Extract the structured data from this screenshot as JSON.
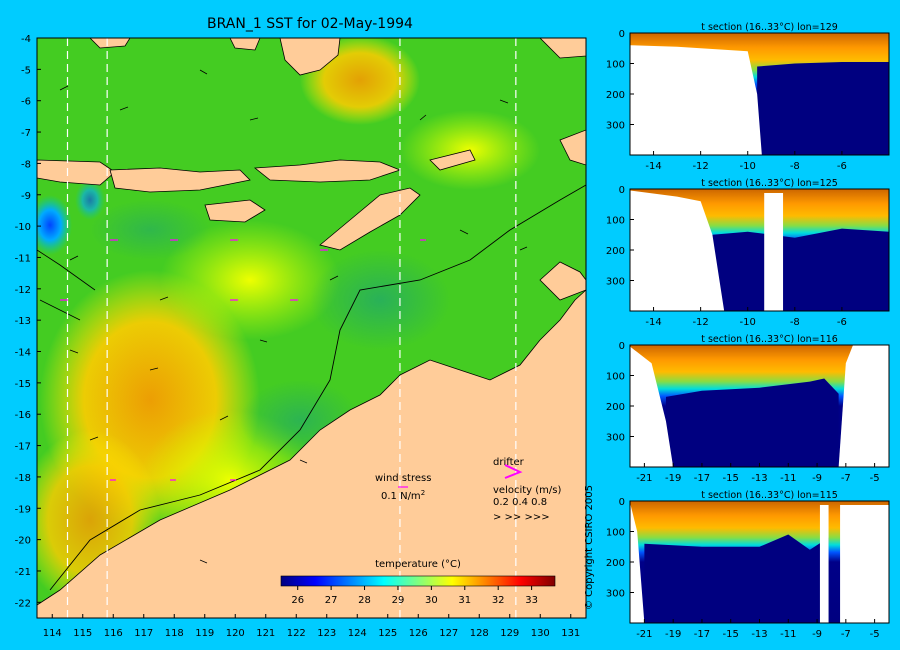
{
  "chart_data": [
    {
      "type": "heatmap",
      "title": "BRAN_1 SST for 02-May-1994",
      "xlim": [
        113.5,
        131.5
      ],
      "ylim": [
        -22.5,
        -4
      ],
      "x_ticks": [
        114,
        115,
        116,
        117,
        118,
        119,
        120,
        121,
        122,
        123,
        124,
        125,
        126,
        127,
        128,
        129,
        130,
        131
      ],
      "y_ticks": [
        -4,
        -5,
        -6,
        -7,
        -8,
        -9,
        -10,
        -11,
        -12,
        -13,
        -14,
        -15,
        -16,
        -17,
        -18,
        -19,
        -20,
        -21,
        -22
      ],
      "section_longitudes": [
        114.5,
        115.8,
        125.4,
        129.2
      ],
      "colorbar": {
        "label": "temperature (°C)",
        "range": [
          25.5,
          33.7
        ],
        "ticks": [
          26,
          27,
          28,
          29,
          30,
          31,
          32,
          33
        ],
        "colors": [
          "#000080",
          "#0000ff",
          "#0080ff",
          "#00ffff",
          "#80ff80",
          "#ffff00",
          "#ff8000",
          "#ff0000",
          "#800000"
        ]
      },
      "legend": {
        "wind_stress_label": "wind stress",
        "wind_stress_value": "0.1 N/m",
        "wind_stress_exp": "2",
        "drifter_label": "drifter",
        "velocity_label": "velocity (m/s)",
        "velocity_values": "0.2 0.4 0.8",
        "velocity_symbols": ">  >>  >>>"
      },
      "colors": {
        "land": "#ffcc99",
        "ocean_base": "#44cc22",
        "warm": "#ffaa00",
        "drifter": "#ff00ff"
      }
    },
    {
      "type": "heatmap",
      "title": "t section (16..33°C) lon=129",
      "xlim": [
        -15,
        -4
      ],
      "x_ticks": [
        -14,
        -12,
        -10,
        -8,
        -6
      ],
      "ylim": [
        0,
        400
      ],
      "y_ticks": [
        0,
        100,
        200,
        300
      ],
      "no_data_edge": [
        [
          -15,
          40
        ],
        [
          -13,
          45
        ],
        [
          -11,
          55
        ],
        [
          -10,
          60
        ],
        [
          -9.6,
          200
        ],
        [
          -9.4,
          400
        ]
      ],
      "thermocline": [
        [
          -9.6,
          70
        ],
        [
          -8,
          60
        ],
        [
          -6,
          55
        ],
        [
          -4,
          55
        ]
      ]
    },
    {
      "type": "heatmap",
      "title": "t section (16..33°C) lon=125",
      "xlim": [
        -15,
        -4
      ],
      "x_ticks": [
        -14,
        -12,
        -10,
        -8,
        -6
      ],
      "ylim": [
        0,
        400
      ],
      "y_ticks": [
        0,
        100,
        200,
        300
      ],
      "no_data_edge": [
        [
          -15,
          5
        ],
        [
          -13,
          25
        ],
        [
          -12,
          40
        ],
        [
          -11.5,
          150
        ],
        [
          -11,
          400
        ]
      ],
      "gaps": [
        [
          -9.3,
          -8.5
        ]
      ],
      "thermocline": [
        [
          -11.5,
          110
        ],
        [
          -10,
          100
        ],
        [
          -8,
          120
        ],
        [
          -6,
          90
        ],
        [
          -4,
          100
        ]
      ]
    },
    {
      "type": "heatmap",
      "title": "t section (16..33°C) lon=116",
      "xlim": [
        -22,
        -4
      ],
      "x_ticks": [
        -21,
        -19,
        -17,
        -15,
        -13,
        -11,
        -9,
        -7,
        -5
      ],
      "ylim": [
        0,
        400
      ],
      "y_ticks": [
        0,
        100,
        200,
        300
      ],
      "no_data_edge": [
        [
          -22,
          5
        ],
        [
          -20.5,
          60
        ],
        [
          -19.5,
          250
        ],
        [
          -19,
          400
        ]
      ],
      "east_edge": [
        [
          -6.5,
          0
        ],
        [
          -7,
          60
        ],
        [
          -7.5,
          400
        ]
      ],
      "thermocline": [
        [
          -19.5,
          130
        ],
        [
          -17,
          110
        ],
        [
          -13,
          100
        ],
        [
          -9.5,
          80
        ],
        [
          -8.5,
          70
        ],
        [
          -7.5,
          120
        ]
      ]
    },
    {
      "type": "heatmap",
      "title": "t section (16..33°C) lon=115",
      "xlim": [
        -22,
        -4
      ],
      "x_ticks": [
        -21,
        -19,
        -17,
        -15,
        -13,
        -11,
        -9,
        -7,
        -5
      ],
      "ylim": [
        0,
        400
      ],
      "y_ticks": [
        0,
        100,
        200,
        300
      ],
      "no_data_edge": [
        [
          -22,
          5
        ],
        [
          -21.5,
          100
        ],
        [
          -21,
          400
        ]
      ],
      "gaps": [
        [
          -8.8,
          -8.2
        ],
        [
          -7.4,
          -4
        ]
      ],
      "thermocline": [
        [
          -21,
          100
        ],
        [
          -17,
          110
        ],
        [
          -13,
          110
        ],
        [
          -11,
          70
        ],
        [
          -9.5,
          120
        ],
        [
          -8.2,
          80
        ]
      ]
    }
  ],
  "copyright": "© Copyright CSIRO 2005"
}
